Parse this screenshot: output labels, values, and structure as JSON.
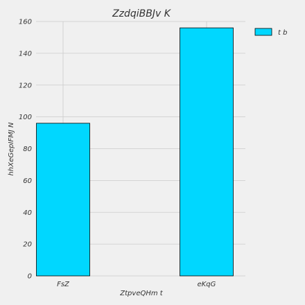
{
  "chart_data": {
    "type": "bar",
    "title": "ZzdqiBBJv K",
    "xlabel": "ZtpveQHm t",
    "ylabel": "hhXeGepIFMJ N",
    "categories": [
      "FsZ",
      "eKqG"
    ],
    "series": [
      {
        "name": "t b",
        "values": [
          96,
          156
        ],
        "color": "#00d7ff"
      }
    ],
    "ylim": [
      0,
      160
    ],
    "yticks": [
      0,
      20,
      40,
      60,
      80,
      100,
      120,
      140,
      160
    ],
    "grid": true,
    "legend_position": "top-right"
  }
}
